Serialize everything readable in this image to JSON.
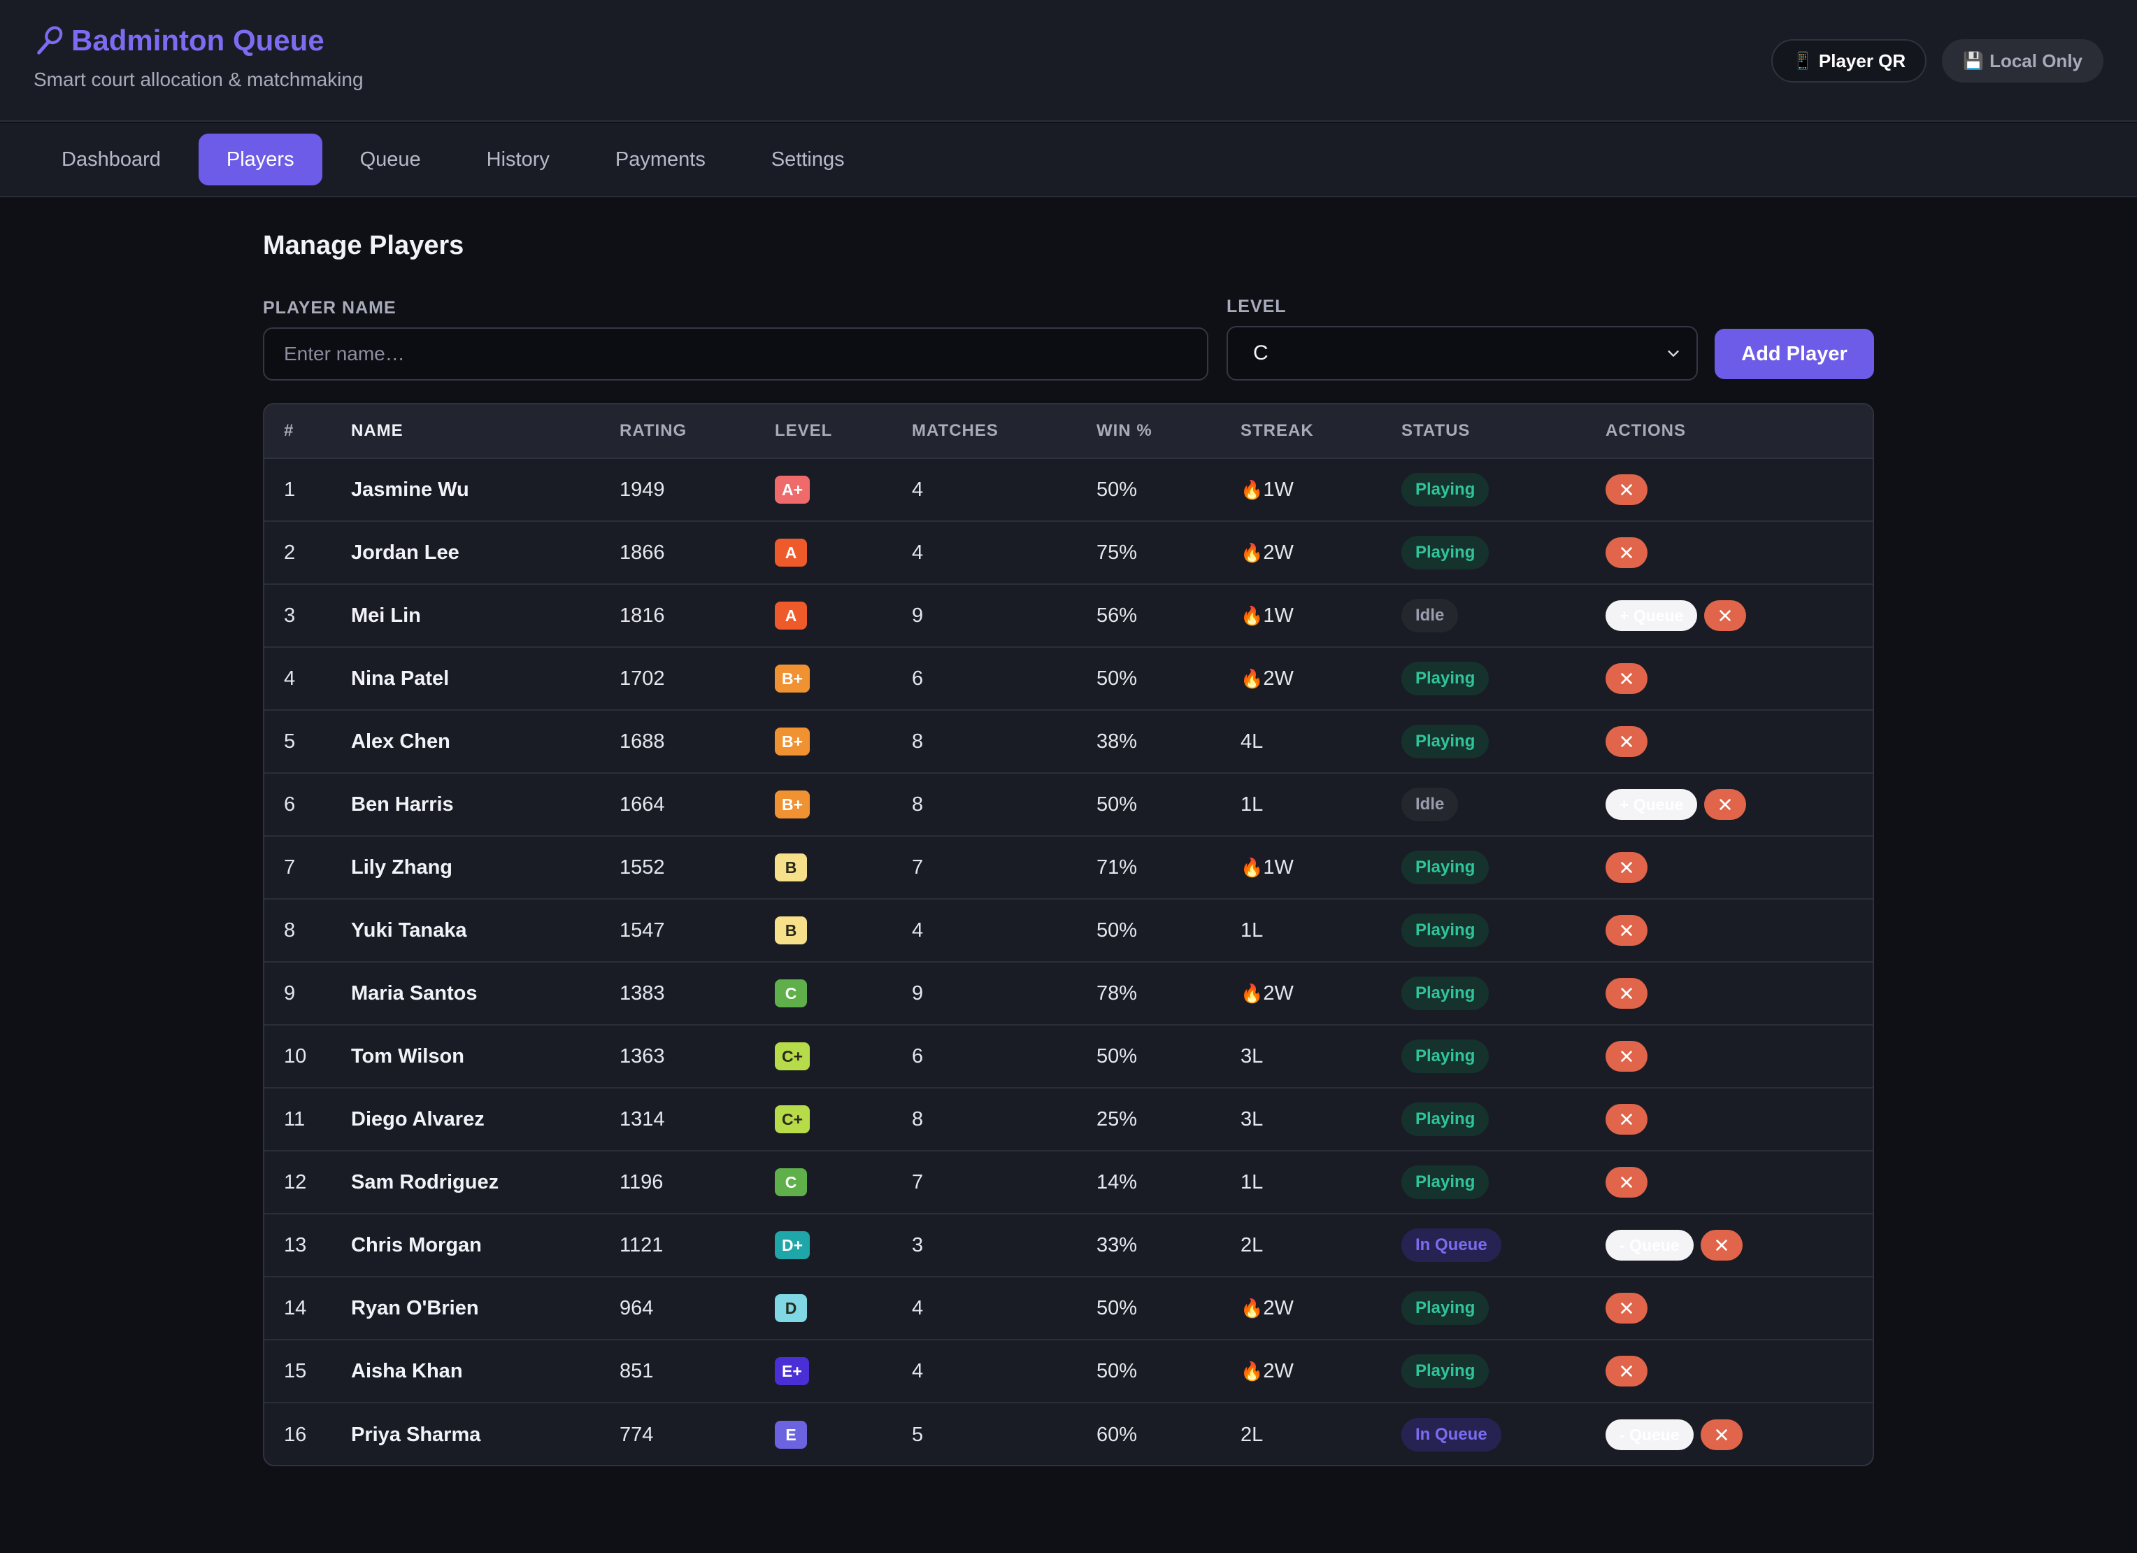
{
  "app": {
    "title": "Badminton Queue",
    "subtitle": "Smart court allocation & matchmaking",
    "icon": "badminton-racket-icon",
    "accent_color": "#6c5ce7"
  },
  "header_actions": {
    "player_qr": {
      "icon": "phone-icon",
      "label": "Player QR"
    },
    "local_only": {
      "icon": "floppy-disk-icon",
      "label": "Local Only"
    }
  },
  "tabs": [
    {
      "label": "Dashboard",
      "active": false
    },
    {
      "label": "Players",
      "active": true
    },
    {
      "label": "Queue",
      "active": false
    },
    {
      "label": "History",
      "active": false
    },
    {
      "label": "Payments",
      "active": false
    },
    {
      "label": "Settings",
      "active": false
    }
  ],
  "page": {
    "title": "Manage Players",
    "form": {
      "name_label": "PLAYER NAME",
      "name_placeholder": "Enter name…",
      "name_value": "",
      "level_label": "LEVEL",
      "level_value": "C",
      "add_button": "Add Player"
    }
  },
  "table": {
    "headers": [
      "#",
      "NAME",
      "RATING",
      "LEVEL",
      "MATCHES",
      "WIN %",
      "STREAK",
      "STATUS",
      "ACTIONS"
    ],
    "queue_button_add": "+ Queue",
    "queue_button_remove": "- Queue",
    "level_colors": {
      "A+": "#ef6b6b",
      "A": "#ef5a2a",
      "B+": "#f19232",
      "B": "#f7e08a",
      "C+": "#b7dc4a",
      "C": "#5fb04a",
      "D+": "#1fa6a8",
      "D": "#7fd8e3",
      "E+": "#4a2fd6",
      "E": "#6b63e0"
    },
    "rows": [
      {
        "num": "1",
        "name": "Jasmine Wu",
        "rating": "1949",
        "level": "A+",
        "matches": "4",
        "win": "50%",
        "streak_fire": true,
        "streak": "1W",
        "status": "Playing",
        "queue_action": ""
      },
      {
        "num": "2",
        "name": "Jordan Lee",
        "rating": "1866",
        "level": "A",
        "matches": "4",
        "win": "75%",
        "streak_fire": true,
        "streak": "2W",
        "status": "Playing",
        "queue_action": ""
      },
      {
        "num": "3",
        "name": "Mei Lin",
        "rating": "1816",
        "level": "A",
        "matches": "9",
        "win": "56%",
        "streak_fire": true,
        "streak": "1W",
        "status": "Idle",
        "queue_action": "+ Queue"
      },
      {
        "num": "4",
        "name": "Nina Patel",
        "rating": "1702",
        "level": "B+",
        "matches": "6",
        "win": "50%",
        "streak_fire": true,
        "streak": "2W",
        "status": "Playing",
        "queue_action": ""
      },
      {
        "num": "5",
        "name": "Alex Chen",
        "rating": "1688",
        "level": "B+",
        "matches": "8",
        "win": "38%",
        "streak_fire": false,
        "streak": "4L",
        "status": "Playing",
        "queue_action": ""
      },
      {
        "num": "6",
        "name": "Ben Harris",
        "rating": "1664",
        "level": "B+",
        "matches": "8",
        "win": "50%",
        "streak_fire": false,
        "streak": "1L",
        "status": "Idle",
        "queue_action": "+ Queue"
      },
      {
        "num": "7",
        "name": "Lily Zhang",
        "rating": "1552",
        "level": "B",
        "matches": "7",
        "win": "71%",
        "streak_fire": true,
        "streak": "1W",
        "status": "Playing",
        "queue_action": ""
      },
      {
        "num": "8",
        "name": "Yuki Tanaka",
        "rating": "1547",
        "level": "B",
        "matches": "4",
        "win": "50%",
        "streak_fire": false,
        "streak": "1L",
        "status": "Playing",
        "queue_action": ""
      },
      {
        "num": "9",
        "name": "Maria Santos",
        "rating": "1383",
        "level": "C",
        "matches": "9",
        "win": "78%",
        "streak_fire": true,
        "streak": "2W",
        "status": "Playing",
        "queue_action": ""
      },
      {
        "num": "10",
        "name": "Tom Wilson",
        "rating": "1363",
        "level": "C+",
        "matches": "6",
        "win": "50%",
        "streak_fire": false,
        "streak": "3L",
        "status": "Playing",
        "queue_action": ""
      },
      {
        "num": "11",
        "name": "Diego Alvarez",
        "rating": "1314",
        "level": "C+",
        "matches": "8",
        "win": "25%",
        "streak_fire": false,
        "streak": "3L",
        "status": "Playing",
        "queue_action": ""
      },
      {
        "num": "12",
        "name": "Sam Rodriguez",
        "rating": "1196",
        "level": "C",
        "matches": "7",
        "win": "14%",
        "streak_fire": false,
        "streak": "1L",
        "status": "Playing",
        "queue_action": ""
      },
      {
        "num": "13",
        "name": "Chris Morgan",
        "rating": "1121",
        "level": "D+",
        "matches": "3",
        "win": "33%",
        "streak_fire": false,
        "streak": "2L",
        "status": "In Queue",
        "queue_action": "- Queue"
      },
      {
        "num": "14",
        "name": "Ryan O'Brien",
        "rating": "964",
        "level": "D",
        "matches": "4",
        "win": "50%",
        "streak_fire": true,
        "streak": "2W",
        "status": "Playing",
        "queue_action": ""
      },
      {
        "num": "15",
        "name": "Aisha Khan",
        "rating": "851",
        "level": "E+",
        "matches": "4",
        "win": "50%",
        "streak_fire": true,
        "streak": "2W",
        "status": "Playing",
        "queue_action": ""
      },
      {
        "num": "16",
        "name": "Priya Sharma",
        "rating": "774",
        "level": "E",
        "matches": "5",
        "win": "60%",
        "streak_fire": false,
        "streak": "2L",
        "status": "In Queue",
        "queue_action": "- Queue"
      }
    ]
  }
}
